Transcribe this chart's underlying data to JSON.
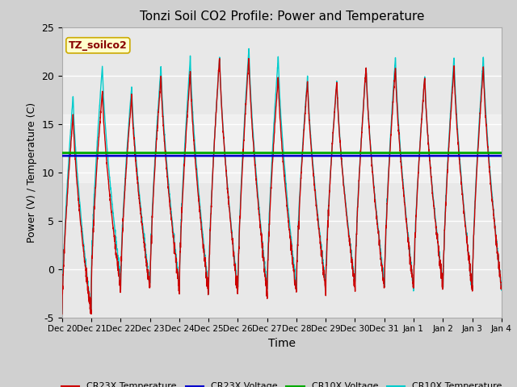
{
  "title": "Tonzi Soil CO2 Profile: Power and Temperature",
  "xlabel": "Time",
  "ylabel": "Power (V) / Temperature (C)",
  "ylim": [
    -5,
    25
  ],
  "xlim": [
    0,
    15
  ],
  "fig_bg_color": "#d0d0d0",
  "plot_bg_color": "#e8e8e8",
  "cr23x_temp_color": "#cc0000",
  "cr23x_volt_color": "#0000cc",
  "cr10x_volt_color": "#00aa00",
  "cr10x_temp_color": "#00cccc",
  "cr23x_volt_value": 11.7,
  "cr10x_volt_value": 12.0,
  "annotation_text": "TZ_soilco2",
  "annotation_bg": "#ffffcc",
  "annotation_border": "#ccaa00",
  "annotation_text_color": "#880000",
  "x_tick_labels": [
    "Dec 20",
    "Dec 21",
    "Dec 22",
    "Dec 23",
    "Dec 24",
    "Dec 25",
    "Dec 26",
    "Dec 27",
    "Dec 28",
    "Dec 29",
    "Dec 30",
    "Dec 31",
    "Jan 1",
    "Jan 2",
    "Jan 3",
    "Jan 4"
  ],
  "peak_heights_cr10x": [
    18,
    21,
    19,
    21,
    22,
    22,
    23,
    22,
    20,
    19.5,
    21,
    22,
    20,
    22,
    22
  ],
  "peak_heights_cr23x": [
    16,
    18.5,
    18,
    20,
    20.5,
    22,
    22,
    20,
    19.5,
    19.5,
    21,
    21,
    20,
    21,
    21
  ],
  "trough_cr10x": [
    -4.5,
    -1,
    -1.5,
    -1.5,
    -2,
    -2,
    -2,
    -2,
    -1.5,
    -1.5,
    -1.5,
    -2,
    -1.5,
    -2,
    -2
  ],
  "trough_cr23x": [
    -4.8,
    -2,
    -2,
    -2,
    -2.5,
    -2.5,
    -2.5,
    -2.5,
    -2,
    -2,
    -2,
    -2,
    -2,
    -2,
    -2
  ]
}
